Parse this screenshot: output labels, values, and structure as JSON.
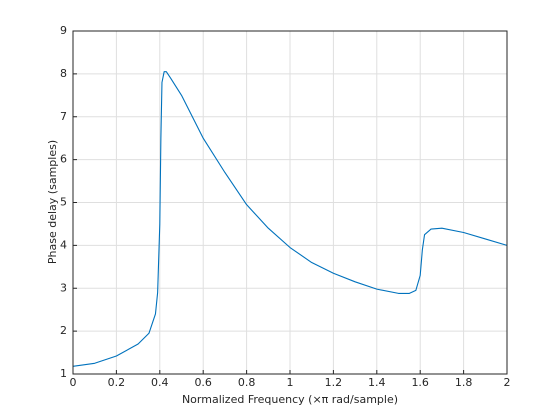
{
  "chart_data": {
    "type": "line",
    "xlabel": "Normalized Frequency  (×π rad/sample)",
    "ylabel": "Phase delay (samples)",
    "x": [
      0,
      0.1,
      0.2,
      0.3,
      0.35,
      0.38,
      0.39,
      0.4,
      0.405,
      0.41,
      0.42,
      0.43,
      0.45,
      0.5,
      0.6,
      0.7,
      0.8,
      0.9,
      1.0,
      1.1,
      1.2,
      1.3,
      1.4,
      1.5,
      1.55,
      1.58,
      1.6,
      1.61,
      1.62,
      1.65,
      1.7,
      1.8,
      1.9,
      2.0
    ],
    "values": [
      1.18,
      1.25,
      1.42,
      1.7,
      1.95,
      2.4,
      2.9,
      4.5,
      6.5,
      7.8,
      8.05,
      8.05,
      7.9,
      7.5,
      6.5,
      5.7,
      4.95,
      4.4,
      3.95,
      3.6,
      3.35,
      3.15,
      2.98,
      2.88,
      2.88,
      2.95,
      3.3,
      3.9,
      4.25,
      4.38,
      4.4,
      4.3,
      4.15,
      4.0
    ],
    "color": "#0072bd",
    "xlim": [
      0,
      2
    ],
    "xticks": [
      0,
      0.2,
      0.4,
      0.6,
      0.8,
      1,
      1.2,
      1.4,
      1.6,
      1.8,
      2
    ],
    "ylim": [
      1,
      9
    ],
    "yticks": [
      1,
      2,
      3,
      4,
      5,
      6,
      7,
      8,
      9
    ],
    "grid": true
  }
}
